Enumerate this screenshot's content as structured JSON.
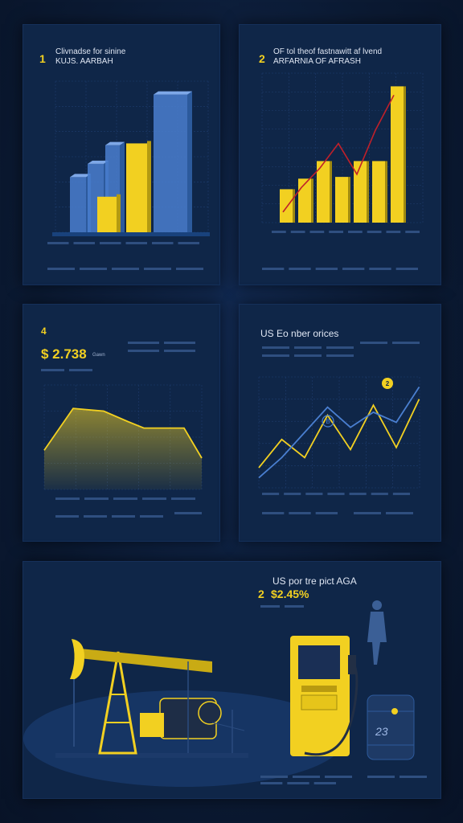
{
  "panel1": {
    "number": "1",
    "title": "Clivnadse for sinine",
    "subtitle": "KUJS. AARBAH",
    "chart_data": {
      "type": "bar",
      "series": [
        {
          "values": [
            62,
            77,
            98,
            155
          ]
        },
        {
          "values": [
            40,
            100
          ]
        }
      ]
    }
  },
  "panel2": {
    "number": "2",
    "title": "OF tol theof fastnawitt af lvend",
    "subtitle": "ARFARNIA OF AFRASH",
    "chart_data": {
      "type": "bar",
      "values": [
        38,
        50,
        70,
        52,
        70,
        70,
        155
      ],
      "trend_line": [
        12,
        40,
        62,
        90,
        55,
        105,
        145
      ]
    }
  },
  "panel3": {
    "number": "4",
    "price": "$ 2.738",
    "price_suffix": "Gawn",
    "chart_data": {
      "type": "area",
      "values": [
        30,
        62,
        60,
        52,
        47,
        47,
        24
      ]
    }
  },
  "panel4": {
    "title": "US Eo nber orices",
    "chart_data": {
      "type": "line",
      "series": [
        {
          "values": [
            20,
            48,
            30,
            72,
            38,
            82,
            40,
            88
          ]
        },
        {
          "values": [
            10,
            30,
            55,
            80,
            60,
            75,
            65,
            100
          ]
        }
      ]
    },
    "marker_b": "B",
    "marker_pin": "2"
  },
  "panel5": {
    "title": "US por tre pict AGA",
    "number": "2",
    "price": "$2.45%",
    "barrel_label": "23",
    "colors": {
      "accent": "#f2d021",
      "panel": "#0f2648",
      "line_blue": "#4a7fd0",
      "trend_red": "#c0202a"
    }
  }
}
